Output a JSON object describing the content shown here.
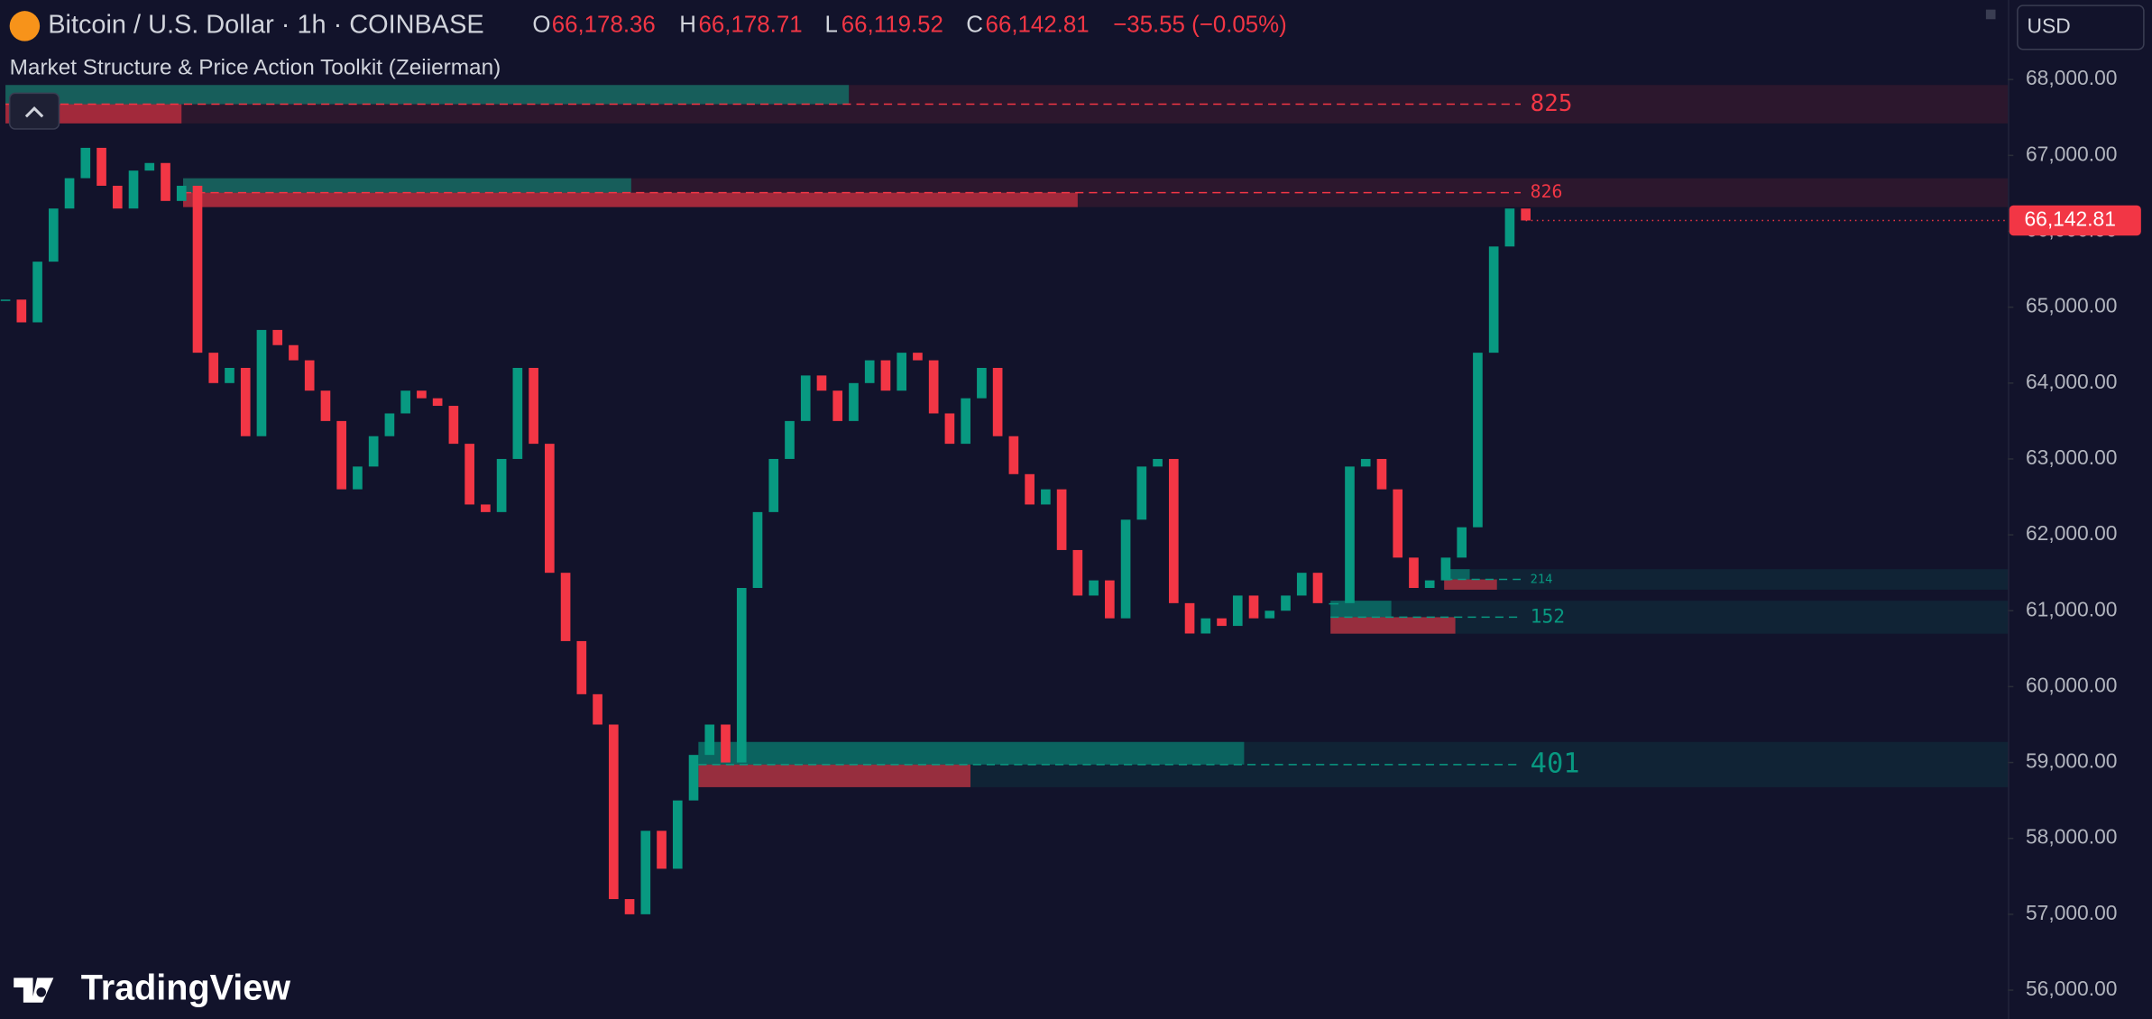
{
  "header": {
    "symbol": "Bitcoin / U.S. Dollar · 1h · COINBASE",
    "open_label": "O",
    "open": "66,178.36",
    "high_label": "H",
    "high": "66,178.71",
    "low_label": "L",
    "low": "66,119.52",
    "close_label": "C",
    "close": "66,142.81",
    "change": "−35.55 (−0.05%)"
  },
  "indicator": "Market Structure & Price Action Toolkit (Zeiierman)",
  "currency": "USD",
  "brand": "TradingView",
  "chart_data": {
    "type": "candlestick",
    "values": [
      65100,
      64800,
      65600,
      66300,
      66700,
      67100,
      66600,
      66300,
      66800,
      66900,
      66400,
      66600,
      64400,
      64000,
      64200,
      63300,
      64700,
      64500,
      64300,
      63900,
      63500,
      62600,
      62900,
      63300,
      63600,
      63900,
      63800,
      63700,
      63200,
      62400,
      62300,
      63000,
      64200,
      63200,
      61500,
      60600,
      59900,
      59500,
      57200,
      57000,
      58100,
      57600,
      58500,
      59100,
      59500,
      59000,
      61300,
      62300,
      63000,
      63500,
      64100,
      63900,
      63500,
      64000,
      64300,
      63900,
      64400,
      64300,
      63600,
      63200,
      63800,
      64200,
      63300,
      62800,
      62400,
      62600,
      61800,
      61200,
      61400,
      60900,
      62200,
      62900,
      63000,
      61100,
      60700,
      60900,
      60800,
      61200,
      60900,
      61000,
      61200,
      61500,
      61100,
      61100,
      62900,
      63000,
      62600,
      61700,
      61300,
      61400,
      61700,
      62100,
      64400,
      65800,
      66300,
      66142.81
    ],
    "up_color": "#089981",
    "down_color": "#f23645",
    "ylim": [
      55620,
      69048
    ],
    "yticks": [
      {
        "value": 56000,
        "label": "56,000.00"
      },
      {
        "value": 57000,
        "label": "57,000.00"
      },
      {
        "value": 58000,
        "label": "58,000.00"
      },
      {
        "value": 59000,
        "label": "59,000.00"
      },
      {
        "value": 60000,
        "label": "60,000.00"
      },
      {
        "value": 61000,
        "label": "61,000.00"
      },
      {
        "value": 62000,
        "label": "62,000.00"
      },
      {
        "value": 63000,
        "label": "63,000.00"
      },
      {
        "value": 64000,
        "label": "64,000.00"
      },
      {
        "value": 65000,
        "label": "65,000.00"
      },
      {
        "value": 66000,
        "label": "66,000.00"
      },
      {
        "value": 67000,
        "label": "67,000.00"
      },
      {
        "value": 68000,
        "label": "68,000.00"
      }
    ],
    "last_price": {
      "value": 66142.81,
      "label": "66,142.81"
    },
    "zones": [
      {
        "top": 67928,
        "bottom": 67422,
        "start": 0,
        "bull_to": 52.7,
        "bear_to": 11,
        "label": 825,
        "color": "#f23645"
      },
      {
        "top": 66699,
        "bottom": 66319,
        "start": 11.1,
        "bull_to": 39.1,
        "bear_to": 67,
        "label": 826,
        "color": "#f23645"
      },
      {
        "top": 61548,
        "bottom": 61277,
        "start": 89.9,
        "bull_to": 91.5,
        "bear_to": 93.2,
        "label": 214,
        "color": "#089981"
      },
      {
        "top": 61132,
        "bottom": 60698,
        "start": 82.8,
        "bull_to": 86.6,
        "bear_to": 90.6,
        "label": 152,
        "color": "#089981"
      },
      {
        "top": 59271,
        "bottom": 58675,
        "start": 43.3,
        "bull_to": 77.4,
        "bear_to": 60.3,
        "label": 401,
        "color": "#089981"
      }
    ]
  }
}
